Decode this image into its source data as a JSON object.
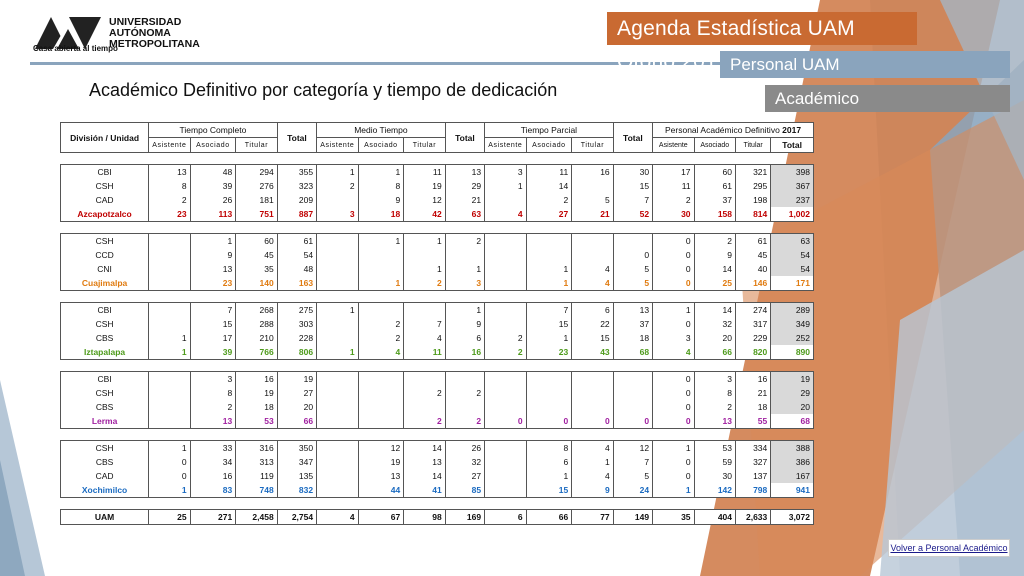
{
  "header": {
    "logo_line1": "UNIVERSIDAD",
    "logo_line2": "AUTÓNOMA",
    "logo_line3": "METROPOLITANA",
    "logo_motto": "Casa abierta al tiempo",
    "banner_agenda": "Agenda Estadística UAM  Otoño 2017",
    "banner_personal": "Personal UAM",
    "banner_academico": "Académico",
    "page_title": "Académico Definitivo por categoría y tiempo de dedicación"
  },
  "colors": {
    "orange": "#c96a32",
    "blue_gray": "#8aa4bd",
    "gray": "#8a8a8a",
    "azcapotzalco": "#c00000",
    "cuajimalpa": "#e07b10",
    "iztapalapa": "#4d9a1a",
    "lerma": "#a020a0",
    "xochimilco": "#1a6ac0"
  },
  "table": {
    "head_division": "División / Unidad",
    "head_tc": "Tiempo Completo",
    "head_mt": "Medio Tiempo",
    "head_tp": "Tiempo Parcial",
    "head_sum_label": "Personal Académico Definitivo",
    "head_sum_year": "2017",
    "head_total": "Total",
    "head_asistente": "Asistente",
    "head_asociado": "Asociado",
    "head_titular": "Titular",
    "groups": [
      {
        "color": "azc",
        "rows": [
          [
            "CBI",
            "13",
            "48",
            "294",
            "355",
            "1",
            "1",
            "11",
            "13",
            "3",
            "11",
            "16",
            "30",
            "17",
            "60",
            "321",
            "398"
          ],
          [
            "CSH",
            "8",
            "39",
            "276",
            "323",
            "2",
            "8",
            "19",
            "29",
            "1",
            "14",
            "",
            "15",
            "11",
            "61",
            "295",
            "367"
          ],
          [
            "CAD",
            "2",
            "26",
            "181",
            "209",
            "",
            "9",
            "12",
            "21",
            "",
            "2",
            "5",
            "7",
            "2",
            "37",
            "198",
            "237"
          ]
        ],
        "subtotal": [
          "Azcapotzalco",
          "23",
          "113",
          "751",
          "887",
          "3",
          "18",
          "42",
          "63",
          "4",
          "27",
          "21",
          "52",
          "30",
          "158",
          "814",
          "1,002"
        ]
      },
      {
        "color": "cua",
        "rows": [
          [
            "CSH",
            "",
            "1",
            "60",
            "61",
            "",
            "1",
            "1",
            "2",
            "",
            "",
            "",
            "",
            "0",
            "2",
            "61",
            "63"
          ],
          [
            "CCD",
            "",
            "9",
            "45",
            "54",
            "",
            "",
            "",
            "",
            "",
            "",
            "",
            "0",
            "0",
            "9",
            "45",
            "54"
          ],
          [
            "CNI",
            "",
            "13",
            "35",
            "48",
            "",
            "",
            "1",
            "1",
            "",
            "1",
            "4",
            "5",
            "0",
            "14",
            "40",
            "54"
          ]
        ],
        "subtotal": [
          "Cuajimalpa",
          "",
          "23",
          "140",
          "163",
          "",
          "1",
          "2",
          "3",
          "",
          "1",
          "4",
          "5",
          "0",
          "25",
          "146",
          "171"
        ]
      },
      {
        "color": "izt",
        "rows": [
          [
            "CBI",
            "",
            "7",
            "268",
            "275",
            "1",
            "",
            "",
            "1",
            "",
            "7",
            "6",
            "13",
            "1",
            "14",
            "274",
            "289"
          ],
          [
            "CSH",
            "",
            "15",
            "288",
            "303",
            "",
            "2",
            "7",
            "9",
            "",
            "15",
            "22",
            "37",
            "0",
            "32",
            "317",
            "349"
          ],
          [
            "CBS",
            "1",
            "17",
            "210",
            "228",
            "",
            "2",
            "4",
            "6",
            "2",
            "1",
            "15",
            "18",
            "3",
            "20",
            "229",
            "252"
          ]
        ],
        "subtotal": [
          "Iztapalapa",
          "1",
          "39",
          "766",
          "806",
          "1",
          "4",
          "11",
          "16",
          "2",
          "23",
          "43",
          "68",
          "4",
          "66",
          "820",
          "890"
        ]
      },
      {
        "color": "ler",
        "rows": [
          [
            "CBI",
            "",
            "3",
            "16",
            "19",
            "",
            "",
            "",
            "",
            "",
            "",
            "",
            "",
            "0",
            "3",
            "16",
            "19"
          ],
          [
            "CSH",
            "",
            "8",
            "19",
            "27",
            "",
            "",
            "2",
            "2",
            "",
            "",
            "",
            "",
            "0",
            "8",
            "21",
            "29"
          ],
          [
            "CBS",
            "",
            "2",
            "18",
            "20",
            "",
            "",
            "",
            "",
            "",
            "",
            "",
            "",
            "0",
            "2",
            "18",
            "20"
          ]
        ],
        "subtotal": [
          "Lerma",
          "",
          "13",
          "53",
          "66",
          "",
          "",
          "2",
          "2",
          "0",
          "0",
          "0",
          "0",
          "0",
          "13",
          "55",
          "68"
        ]
      },
      {
        "color": "xoc",
        "rows": [
          [
            "CSH",
            "1",
            "33",
            "316",
            "350",
            "",
            "12",
            "14",
            "26",
            "",
            "8",
            "4",
            "12",
            "1",
            "53",
            "334",
            "388"
          ],
          [
            "CBS",
            "0",
            "34",
            "313",
            "347",
            "",
            "19",
            "13",
            "32",
            "",
            "6",
            "1",
            "7",
            "0",
            "59",
            "327",
            "386"
          ],
          [
            "CAD",
            "0",
            "16",
            "119",
            "135",
            "",
            "13",
            "14",
            "27",
            "",
            "1",
            "4",
            "5",
            "0",
            "30",
            "137",
            "167"
          ]
        ],
        "subtotal": [
          "Xochimilco",
          "1",
          "83",
          "748",
          "832",
          "",
          "44",
          "41",
          "85",
          "",
          "15",
          "9",
          "24",
          "1",
          "142",
          "798",
          "941"
        ]
      }
    ],
    "total": [
      "UAM",
      "25",
      "271",
      "2,458",
      "2,754",
      "4",
      "67",
      "98",
      "169",
      "6",
      "66",
      "77",
      "149",
      "35",
      "404",
      "2,633",
      "3,072"
    ]
  },
  "footer": {
    "link_label": "Volver a Personal Académico"
  }
}
